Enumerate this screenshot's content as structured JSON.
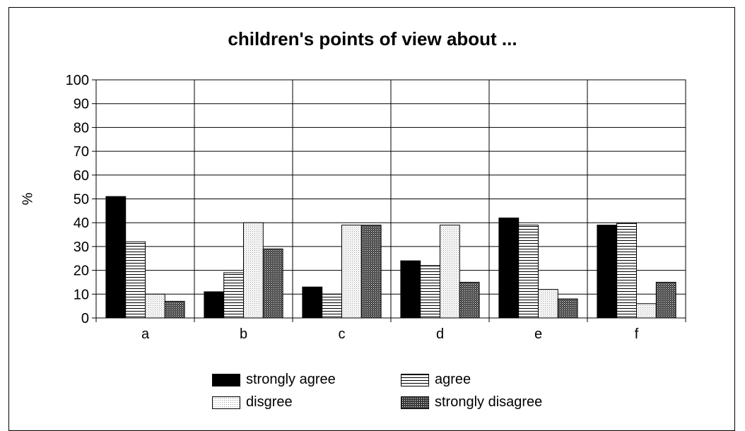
{
  "chart_data": {
    "type": "bar",
    "title": "children's points of view about ...",
    "xlabel": "",
    "ylabel": "%",
    "ylim": [
      0,
      100
    ],
    "yticks": [
      "0",
      "10",
      "20",
      "30",
      "40",
      "50",
      "60",
      "70",
      "80",
      "90",
      "100"
    ],
    "categories": [
      "a",
      "b",
      "c",
      "d",
      "e",
      "f"
    ],
    "grid": true,
    "legend_position": "bottom",
    "series": [
      {
        "name": "strongly agree",
        "values": [
          51,
          11,
          13,
          24,
          42,
          39
        ],
        "pattern": "solid-black"
      },
      {
        "name": "agree",
        "values": [
          32,
          19,
          10,
          22,
          39,
          40
        ],
        "pattern": "horizontal-lines"
      },
      {
        "name": "disgree",
        "values": [
          10,
          40,
          39,
          39,
          12,
          6
        ],
        "pattern": "light-dots"
      },
      {
        "name": "strongly disagree",
        "values": [
          7,
          29,
          39,
          15,
          8,
          15
        ],
        "pattern": "dark-crosshatch"
      }
    ]
  }
}
